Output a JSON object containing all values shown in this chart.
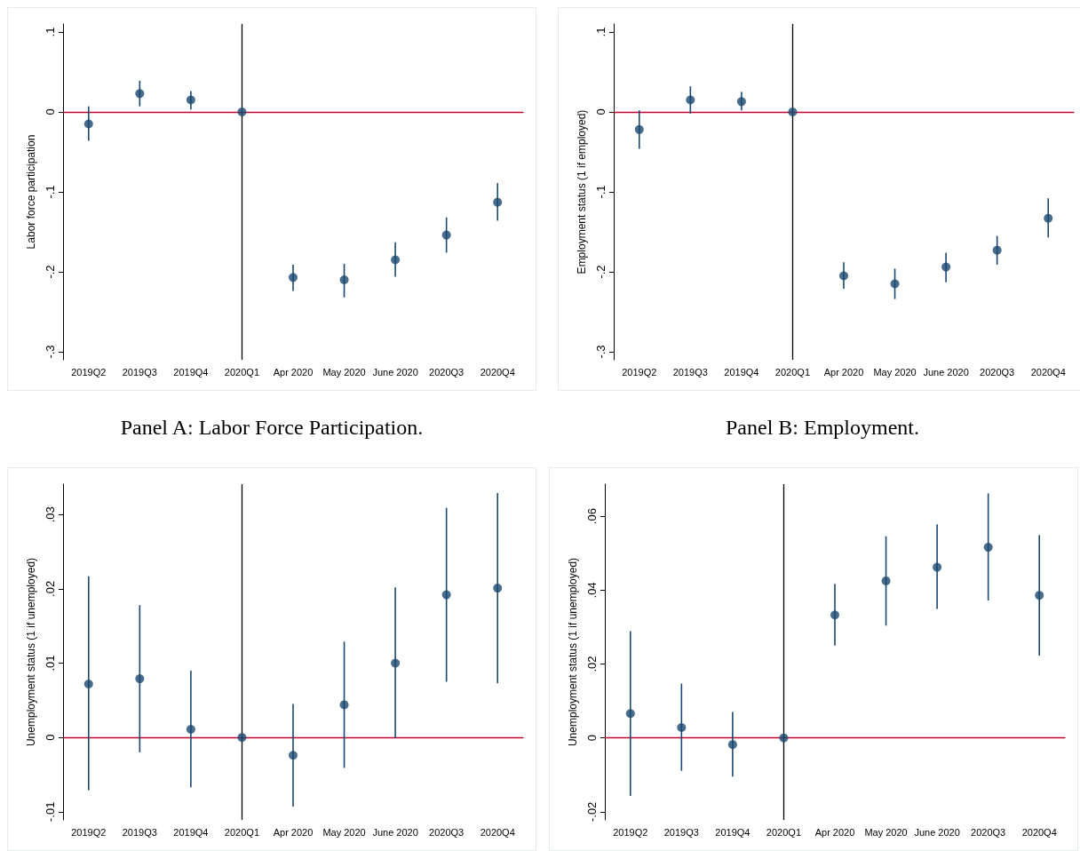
{
  "chart_data": [
    {
      "type": "scatter",
      "title": "Panel A: Labor Force Participation.",
      "ylabel": "Labor force participation",
      "categories": [
        "2019Q2",
        "2019Q3",
        "2019Q4",
        "2020Q1",
        "Apr 2020",
        "May 2020",
        "June 2020",
        "2020Q3",
        "2020Q4"
      ],
      "series": [
        {
          "color": "#1a476f",
          "values": [
            -0.015,
            0.023,
            0.015,
            0,
            -0.207,
            -0.21,
            -0.185,
            -0.154,
            -0.113
          ],
          "errors": [
            [
              -0.036,
              0.007
            ],
            [
              0.007,
              0.039
            ],
            [
              0.003,
              0.026
            ],
            null,
            [
              -0.224,
              -0.191
            ],
            [
              -0.232,
              -0.19
            ],
            [
              -0.206,
              -0.163
            ],
            [
              -0.176,
              -0.132
            ],
            [
              -0.136,
              -0.089
            ]
          ]
        }
      ],
      "ylim": [
        -0.31,
        0.11
      ],
      "yticks": [
        {
          "value": -0.3,
          "label": "-.3"
        },
        {
          "value": -0.2,
          "label": "-.2"
        },
        {
          "value": -0.1,
          "label": "-.1"
        },
        {
          "value": 0,
          "label": "0"
        },
        {
          "value": 0.1,
          "label": ".1"
        }
      ],
      "ref_lines": [
        {
          "axis": "y",
          "value": 0,
          "color": "#c10534"
        },
        {
          "axis": "x",
          "value": "2020Q1",
          "color": "#000000"
        }
      ],
      "marker": "circle",
      "grid": false
    },
    {
      "type": "scatter",
      "title": "Panel B: Employment.",
      "ylabel": "Employment status (1 if employed)",
      "categories": [
        "2019Q2",
        "2019Q3",
        "2019Q4",
        "2020Q1",
        "Apr 2020",
        "May 2020",
        "June 2020",
        "2020Q3",
        "2020Q4"
      ],
      "series": [
        {
          "color": "#1a476f",
          "values": [
            -0.022,
            0.015,
            0.013,
            0,
            -0.205,
            -0.215,
            -0.194,
            -0.173,
            -0.133
          ],
          "errors": [
            [
              -0.046,
              0.002
            ],
            [
              -0.002,
              0.032
            ],
            [
              0.002,
              0.025
            ],
            null,
            [
              -0.221,
              -0.188
            ],
            [
              -0.234,
              -0.196
            ],
            [
              -0.213,
              -0.176
            ],
            [
              -0.191,
              -0.155
            ],
            [
              -0.157,
              -0.108
            ]
          ]
        }
      ],
      "ylim": [
        -0.31,
        0.11
      ],
      "yticks": [
        {
          "value": -0.3,
          "label": "-.3"
        },
        {
          "value": -0.2,
          "label": "-.2"
        },
        {
          "value": -0.1,
          "label": "-.1"
        },
        {
          "value": 0,
          "label": "0"
        },
        {
          "value": 0.1,
          "label": ".1"
        }
      ],
      "ref_lines": [
        {
          "axis": "y",
          "value": 0,
          "color": "#c10534"
        },
        {
          "axis": "x",
          "value": "2020Q1",
          "color": "#000000"
        }
      ],
      "marker": "circle",
      "grid": false
    },
    {
      "type": "scatter",
      "ylabel": "Unemployment status (1 if unemployed)",
      "categories": [
        "2019Q2",
        "2019Q3",
        "2019Q4",
        "2020Q1",
        "Apr 2020",
        "May 2020",
        "June 2020",
        "2020Q3",
        "2020Q4"
      ],
      "series": [
        {
          "color": "#1a476f",
          "values": [
            0.0072,
            0.0079,
            0.0011,
            0,
            -0.0024,
            0.0044,
            0.01,
            0.0192,
            0.0201
          ],
          "errors": [
            [
              -0.0071,
              0.0217
            ],
            [
              -0.002,
              0.0178
            ],
            [
              -0.0067,
              0.009
            ],
            null,
            [
              -0.0093,
              0.0045
            ],
            [
              -0.0041,
              0.0129
            ],
            [
              -0.0001,
              0.0202
            ],
            [
              0.0075,
              0.0309
            ],
            [
              0.0073,
              0.0329
            ]
          ]
        }
      ],
      "ylim": [
        -0.0111,
        0.0341
      ],
      "yticks": [
        {
          "value": -0.01,
          "label": "-.01"
        },
        {
          "value": 0,
          "label": "0"
        },
        {
          "value": 0.01,
          "label": ".01"
        },
        {
          "value": 0.02,
          "label": ".02"
        },
        {
          "value": 0.03,
          "label": ".03"
        }
      ],
      "ref_lines": [
        {
          "axis": "y",
          "value": 0,
          "color": "#c10534"
        },
        {
          "axis": "x",
          "value": "2020Q1",
          "color": "#000000"
        }
      ],
      "marker": "circle",
      "grid": false
    },
    {
      "type": "scatter",
      "ylabel": "Unemployment status (1 if unemployed)",
      "categories": [
        "2019Q2",
        "2019Q3",
        "2019Q4",
        "2020Q1",
        "Apr 2020",
        "May 2020",
        "June 2020",
        "2020Q3",
        "2020Q4"
      ],
      "series": [
        {
          "color": "#1a476f",
          "values": [
            0.0066,
            0.0028,
            -0.0018,
            0,
            0.0333,
            0.0425,
            0.0462,
            0.0516,
            0.0386
          ],
          "errors": [
            [
              -0.0157,
              0.0289
            ],
            [
              -0.0089,
              0.0147
            ],
            [
              -0.0105,
              0.007
            ],
            null,
            [
              0.025,
              0.0417
            ],
            [
              0.0304,
              0.0546
            ],
            [
              0.0349,
              0.0578
            ],
            [
              0.0372,
              0.0662
            ],
            [
              0.0223,
              0.0549
            ]
          ]
        }
      ],
      "ylim": [
        -0.0222,
        0.0687
      ],
      "yticks": [
        {
          "value": -0.02,
          "label": "-.02"
        },
        {
          "value": 0,
          "label": "0"
        },
        {
          "value": 0.02,
          "label": ".02"
        },
        {
          "value": 0.04,
          "label": ".04"
        },
        {
          "value": 0.06,
          "label": ".06"
        }
      ],
      "ref_lines": [
        {
          "axis": "y",
          "value": 0,
          "color": "#c10534"
        },
        {
          "axis": "x",
          "value": "2020Q1",
          "color": "#000000"
        }
      ],
      "marker": "circle",
      "grid": false
    }
  ]
}
